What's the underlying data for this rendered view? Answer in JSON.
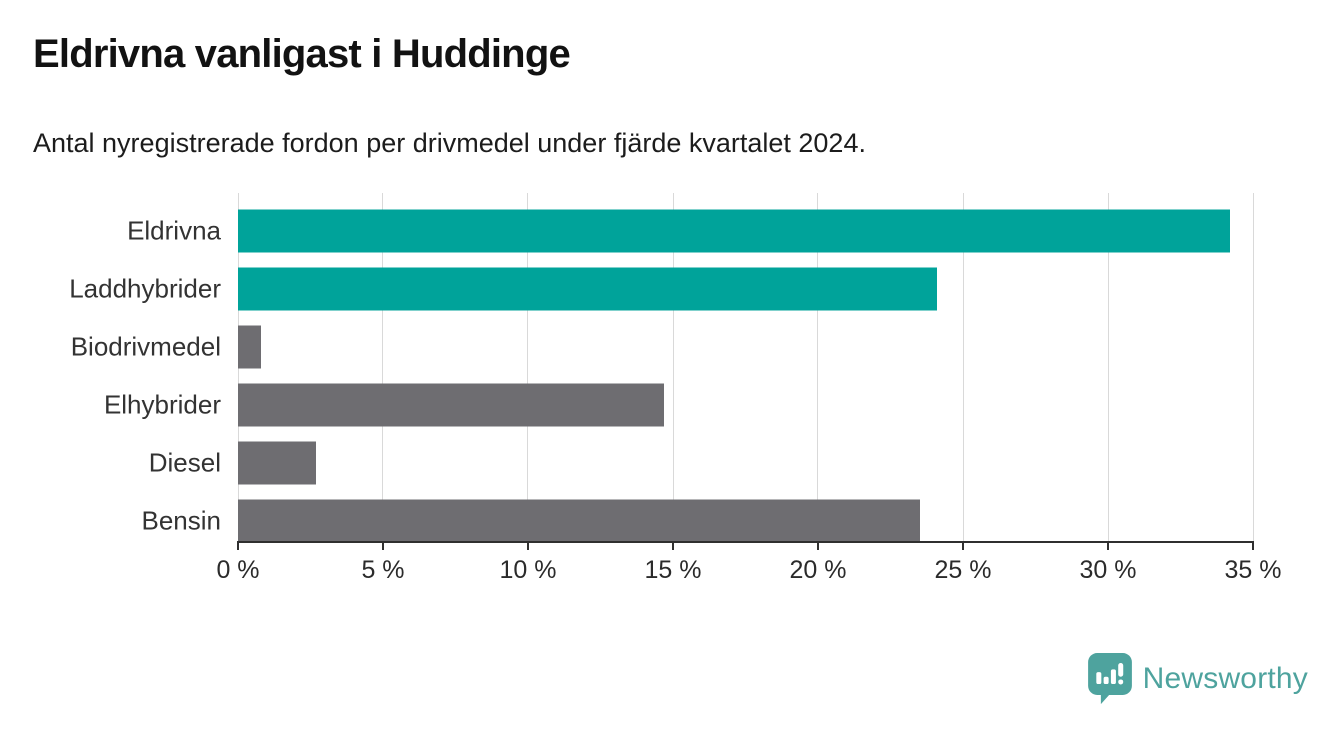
{
  "header": {
    "title": "Eldrivna vanligast i Huddinge",
    "subtitle": "Antal nyregistrerade fordon per drivmedel under fjärde kvartalet 2024."
  },
  "chart_data": {
    "type": "bar",
    "orientation": "horizontal",
    "title": "Eldrivna vanligast i Huddinge",
    "subtitle": "Antal nyregistrerade fordon per drivmedel under fjärde kvartalet 2024.",
    "categories": [
      "Eldrivna",
      "Laddhybrider",
      "Biodrivmedel",
      "Elhybrider",
      "Diesel",
      "Bensin"
    ],
    "values": [
      34.2,
      24.1,
      0.8,
      14.7,
      2.7,
      23.5
    ],
    "unit": "%",
    "xlim": [
      0,
      35
    ],
    "x_tick_labels": [
      "0 %",
      "5 %",
      "10 %",
      "15 %",
      "20 %",
      "25 %",
      "30 %",
      "35 %"
    ],
    "grid": true,
    "legend": "none",
    "highlighted": [
      true,
      true,
      false,
      false,
      false,
      false
    ],
    "colors": {
      "highlight": "#00a39a",
      "default": "#6e6d71",
      "gridline": "#d9d9d9",
      "axis": "#2f2f2f"
    }
  },
  "footer": {
    "brand": "Newsworthy",
    "logo_icon": "bar-chart-speech-bubble-icon",
    "brand_color": "#4ea39e"
  }
}
